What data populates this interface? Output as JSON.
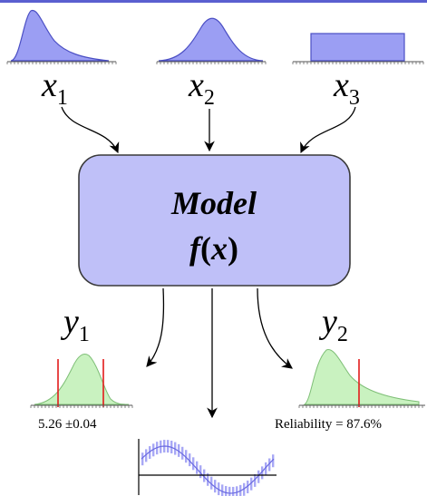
{
  "colors": {
    "input_fill": "#9b9ef3",
    "input_stroke": "#4b4fc4",
    "model_fill": "#bfc0f8",
    "model_stroke": "#3a3a3a",
    "output_fill": "#c9f2c0",
    "output_stroke": "#7fbf77",
    "limit_line": "#e31b1b",
    "bar_fill": "#a8a8f5",
    "top_border": "#5a5fd0"
  },
  "inputs": [
    {
      "var": "x",
      "sub": "1",
      "shape": "skewed-right"
    },
    {
      "var": "x",
      "sub": "2",
      "shape": "normal"
    },
    {
      "var": "x",
      "sub": "3",
      "shape": "uniform"
    }
  ],
  "model": {
    "title": "Model",
    "func_name": "f",
    "func_open": "(",
    "func_arg": "x",
    "func_close": ")"
  },
  "outputs": [
    {
      "var": "y",
      "sub": "1",
      "shape": "normal",
      "caption": "5.26 ±0.04"
    },
    {
      "var": "y",
      "sub": "2",
      "shape": "skewed-right",
      "caption": "Reliability = 87.6%"
    }
  ]
}
